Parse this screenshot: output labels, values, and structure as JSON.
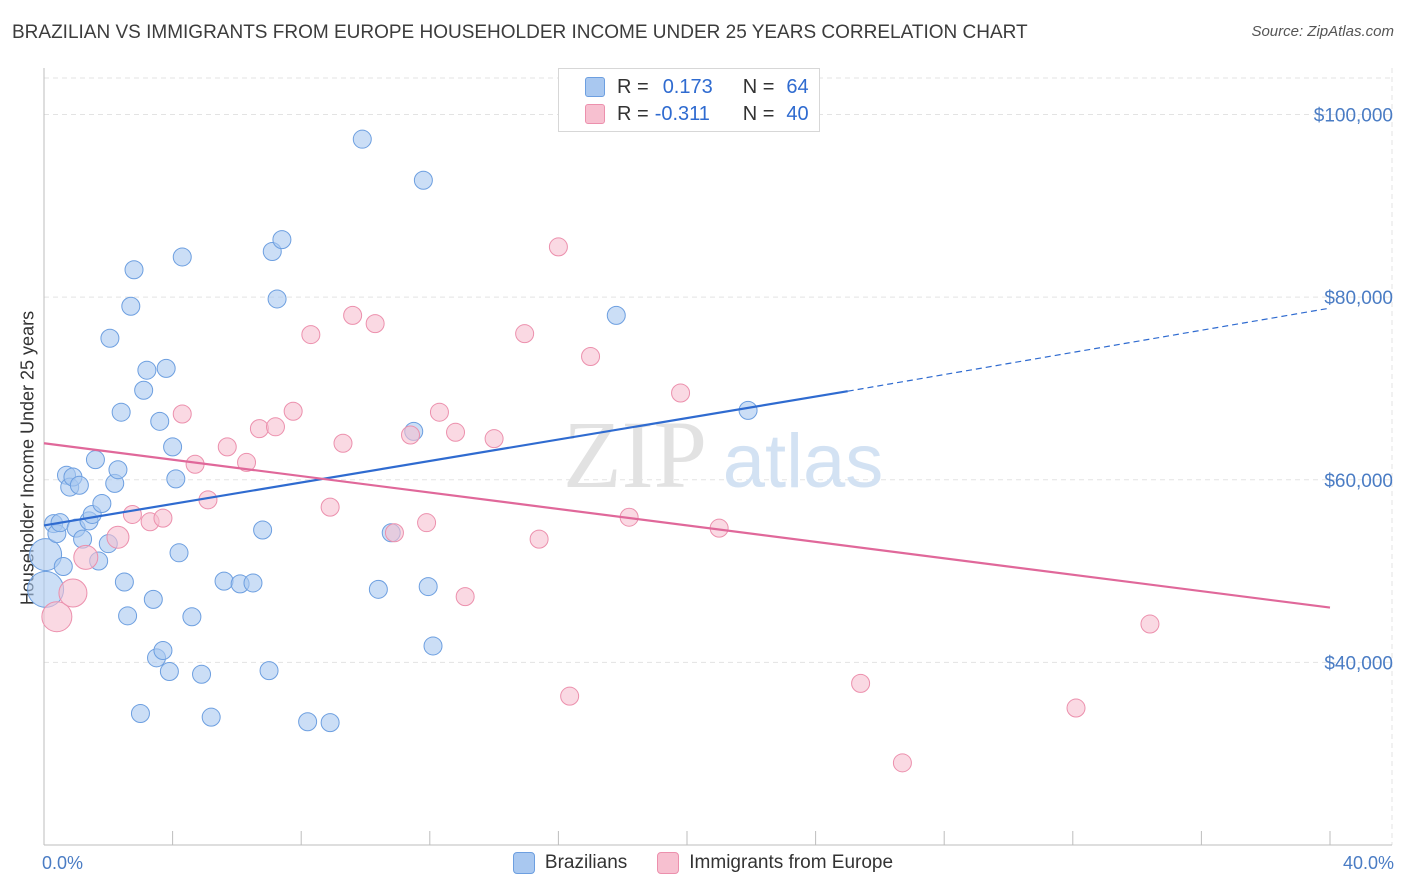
{
  "header": {
    "title": "BRAZILIAN VS IMMIGRANTS FROM EUROPE HOUSEHOLDER INCOME UNDER 25 YEARS CORRELATION CHART",
    "source": "Source: ZipAtlas.com"
  },
  "watermark": {
    "zip": "ZIP",
    "atlas": "atlas"
  },
  "legend": {
    "rows": [
      {
        "r_label": "R =",
        "r_value": "0.173",
        "n_label": "N =",
        "n_value": "64",
        "color": "#a9c8f0",
        "border": "#6d9fe0"
      },
      {
        "r_label": "R =",
        "r_value": "-0.311",
        "n_label": "N =",
        "n_value": "40",
        "color": "#f7c0d0",
        "border": "#ec90ad"
      }
    ]
  },
  "bottom_legend": [
    "Brazilians",
    "Immigrants from Europe"
  ],
  "chart_data": {
    "type": "scatter",
    "title": "BRAZILIAN VS IMMIGRANTS FROM EUROPE HOUSEHOLDER INCOME UNDER 25 YEARS CORRELATION CHART",
    "xlabel": "",
    "ylabel": "Householder Income Under 25 years",
    "xlim": [
      0,
      40
    ],
    "ylim": [
      20000,
      104000
    ],
    "x_tick_labels": [
      "0.0%",
      "40.0%"
    ],
    "y_ticks": [
      40000,
      60000,
      80000,
      100000
    ],
    "y_tick_labels": [
      "$40,000",
      "$60,000",
      "$80,000",
      "$100,000"
    ],
    "grid": true,
    "series": [
      {
        "name": "Brazilians",
        "color": "#a9c8f0",
        "stroke": "#6d9fe0",
        "line_color": "#2f6bd0",
        "trend": {
          "x0": 0,
          "y0": 55000,
          "x1": 25.0,
          "y1": 69700,
          "extend_to_x": 40,
          "extend_y": 78800
        },
        "points": [
          [
            0.05,
            51800,
            16
          ],
          [
            0.05,
            48000,
            18
          ],
          [
            0.3,
            55200,
            9
          ],
          [
            0.4,
            54100,
            9
          ],
          [
            0.5,
            55300,
            9
          ],
          [
            0.6,
            50500,
            9
          ],
          [
            0.7,
            60500,
            9
          ],
          [
            0.8,
            59200,
            9
          ],
          [
            0.9,
            60300,
            9
          ],
          [
            1.0,
            54700,
            9
          ],
          [
            1.1,
            59400,
            9
          ],
          [
            1.2,
            53500,
            9
          ],
          [
            1.4,
            55500,
            9
          ],
          [
            1.5,
            56200,
            9
          ],
          [
            1.6,
            62200,
            9
          ],
          [
            1.7,
            51100,
            9
          ],
          [
            1.8,
            57400,
            9
          ],
          [
            2.0,
            53000,
            9
          ],
          [
            2.2,
            59600,
            9
          ],
          [
            2.3,
            61100,
            9
          ],
          [
            2.4,
            67400,
            9
          ],
          [
            2.5,
            48800,
            9
          ],
          [
            2.6,
            45100,
            9
          ],
          [
            2.7,
            79000,
            9
          ],
          [
            2.8,
            83000,
            9
          ],
          [
            2.05,
            75500,
            9
          ],
          [
            3.0,
            34400,
            9
          ],
          [
            3.1,
            69800,
            9
          ],
          [
            3.2,
            72000,
            9
          ],
          [
            3.4,
            46900,
            9
          ],
          [
            3.5,
            40500,
            9
          ],
          [
            3.6,
            66400,
            9
          ],
          [
            3.7,
            41300,
            9
          ],
          [
            3.8,
            72200,
            9
          ],
          [
            3.9,
            39000,
            9
          ],
          [
            4.0,
            63600,
            9
          ],
          [
            4.1,
            60100,
            9
          ],
          [
            4.2,
            52000,
            9
          ],
          [
            4.3,
            84400,
            9
          ],
          [
            4.6,
            45000,
            9
          ],
          [
            4.9,
            38700,
            9
          ],
          [
            5.2,
            34000,
            9
          ],
          [
            5.6,
            48900,
            9
          ],
          [
            6.1,
            48600,
            9
          ],
          [
            6.5,
            48700,
            9
          ],
          [
            6.8,
            54500,
            9
          ],
          [
            7.0,
            39100,
            9
          ],
          [
            7.1,
            85000,
            9
          ],
          [
            7.25,
            79800,
            9
          ],
          [
            7.4,
            86300,
            9
          ],
          [
            8.2,
            33500,
            9
          ],
          [
            8.9,
            33400,
            9
          ],
          [
            9.9,
            97300,
            9
          ],
          [
            10.4,
            48000,
            9
          ],
          [
            10.8,
            54200,
            9
          ],
          [
            11.5,
            65300,
            9
          ],
          [
            11.8,
            92800,
            9
          ],
          [
            11.95,
            48300,
            9
          ],
          [
            12.1,
            41800,
            9
          ],
          [
            17.8,
            78000,
            9
          ],
          [
            21.9,
            67600,
            9
          ]
        ]
      },
      {
        "name": "Immigrants from Europe",
        "color": "#f7c0d0",
        "stroke": "#ec90ad",
        "line_color": "#e0689a",
        "trend": {
          "x0": 0,
          "y0": 64000,
          "x1": 40,
          "y1": 46000
        },
        "points": [
          [
            0.4,
            45000,
            15
          ],
          [
            0.9,
            47600,
            14
          ],
          [
            1.3,
            51500,
            12
          ],
          [
            2.3,
            53700,
            11
          ],
          [
            2.75,
            56200,
            9
          ],
          [
            3.3,
            55400,
            9
          ],
          [
            3.7,
            55800,
            9
          ],
          [
            4.3,
            67200,
            9
          ],
          [
            4.7,
            61700,
            9
          ],
          [
            5.1,
            57800,
            9
          ],
          [
            5.7,
            63600,
            9
          ],
          [
            6.3,
            61900,
            9
          ],
          [
            6.7,
            65600,
            9
          ],
          [
            7.2,
            65800,
            9
          ],
          [
            7.75,
            67500,
            9
          ],
          [
            8.3,
            75900,
            9
          ],
          [
            8.9,
            57000,
            9
          ],
          [
            9.3,
            64000,
            9
          ],
          [
            9.6,
            78000,
            9
          ],
          [
            10.3,
            77100,
            9
          ],
          [
            10.9,
            54200,
            9
          ],
          [
            11.4,
            64900,
            9
          ],
          [
            11.9,
            55300,
            9
          ],
          [
            12.3,
            67400,
            9
          ],
          [
            12.8,
            65200,
            9
          ],
          [
            13.1,
            47200,
            9
          ],
          [
            14.0,
            64500,
            9
          ],
          [
            14.95,
            76000,
            9
          ],
          [
            15.4,
            53500,
            9
          ],
          [
            16.0,
            85500,
            9
          ],
          [
            16.35,
            36300,
            9
          ],
          [
            17.0,
            73500,
            9
          ],
          [
            18.2,
            55900,
            9
          ],
          [
            19.8,
            69500,
            9
          ],
          [
            21.0,
            54700,
            9
          ],
          [
            25.4,
            37700,
            9
          ],
          [
            26.7,
            29000,
            9
          ],
          [
            32.1,
            35000,
            9
          ],
          [
            34.4,
            44200,
            9
          ]
        ]
      }
    ]
  }
}
